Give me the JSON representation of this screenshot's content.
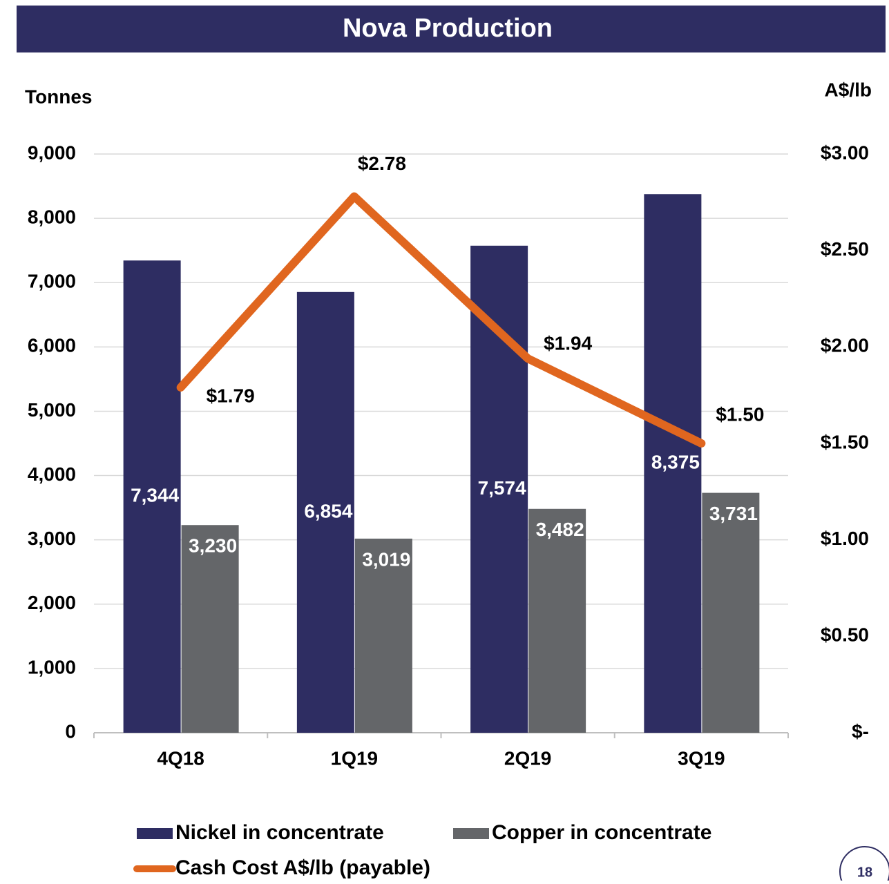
{
  "chart_data": {
    "type": "bar",
    "title": "Nova Production",
    "y_label": "Tonnes",
    "y2_label": "A$/lb",
    "categories": [
      "4Q18",
      "1Q19",
      "2Q19",
      "3Q19"
    ],
    "series": [
      {
        "name": "Nickel in concentrate",
        "color": "#2e2d62",
        "values": [
          7344,
          6854,
          7574,
          8375
        ],
        "value_labels": [
          "7,344",
          "6,854",
          "7,574",
          "8,375"
        ]
      },
      {
        "name": "Copper in concentrate",
        "color": "#646669",
        "values": [
          3230,
          3019,
          3482,
          3731
        ],
        "value_labels": [
          "3,230",
          "3,019",
          "3,482",
          "3,731"
        ]
      },
      {
        "name": "Cash Cost A$/lb (payable)",
        "type": "line",
        "axis": "y2",
        "color": "#e0661f",
        "values": [
          1.79,
          2.78,
          1.94,
          1.5
        ],
        "value_labels": [
          "$1.79",
          "$2.78",
          "$1.94",
          "$1.50"
        ]
      }
    ],
    "ylim": [
      0,
      9000
    ],
    "yticks": [
      0,
      {
        "value": 1000,
        "label": "1,000"
      },
      {
        "value": 2000,
        "label": "2,000"
      },
      {
        "value": 3000,
        "label": "3,000"
      },
      {
        "value": 4000,
        "label": "4,000"
      },
      {
        "value": 5000,
        "label": "5,000"
      },
      {
        "value": 6000,
        "label": "6,000"
      },
      {
        "value": 7000,
        "label": "7,000"
      },
      {
        "value": 8000,
        "label": "8,000"
      },
      {
        "value": 9000,
        "label": "9,000"
      }
    ],
    "y2lim": [
      0,
      3
    ],
    "y2ticks": [
      {
        "value": 0,
        "label": "$-"
      },
      {
        "value": 0.5,
        "label": "$0.50"
      },
      {
        "value": 1,
        "label": "$1.00"
      },
      {
        "value": 1.5,
        "label": "$1.50"
      },
      {
        "value": 2,
        "label": "$2.00"
      },
      {
        "value": 2.5,
        "label": "$2.50"
      },
      {
        "value": 3,
        "label": "$3.00"
      }
    ],
    "grid": true
  },
  "page_number": "18"
}
